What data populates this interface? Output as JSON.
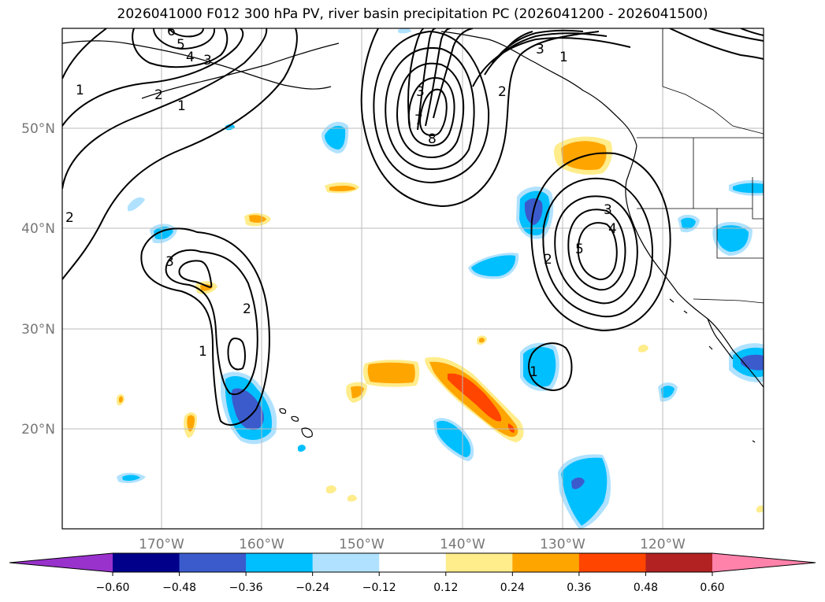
{
  "title": "2026041000 F012 300 hPa PV, river basin precipitation PC (2026041200 - 2026041500)",
  "lat_labels": [
    "50°N",
    "40°N",
    "30°N",
    "20°N"
  ],
  "lon_labels": [
    "170°W",
    "160°W",
    "150°W",
    "140°W",
    "130°W",
    "120°W"
  ],
  "colorbar": {
    "colors": [
      "#9932cc",
      "#00008b",
      "#3b5bcc",
      "#00bfff",
      "#b0e2ff",
      "#ffffff",
      "#ffec8b",
      "#ffa500",
      "#ff4500",
      "#b22222",
      "#ff82ab"
    ],
    "tick_labels": [
      "−0.60",
      "−0.48",
      "−0.36",
      "−0.24",
      "−0.12",
      "0.12",
      "0.24",
      "0.36",
      "0.48",
      "0.60"
    ]
  },
  "contour_labels": [
    "1",
    "2",
    "3",
    "4",
    "5",
    "6",
    "7",
    "8",
    "1",
    "2",
    "3",
    "1",
    "2",
    "3",
    "1",
    "2",
    "3",
    "4",
    "5",
    "1",
    "2",
    "3"
  ]
}
